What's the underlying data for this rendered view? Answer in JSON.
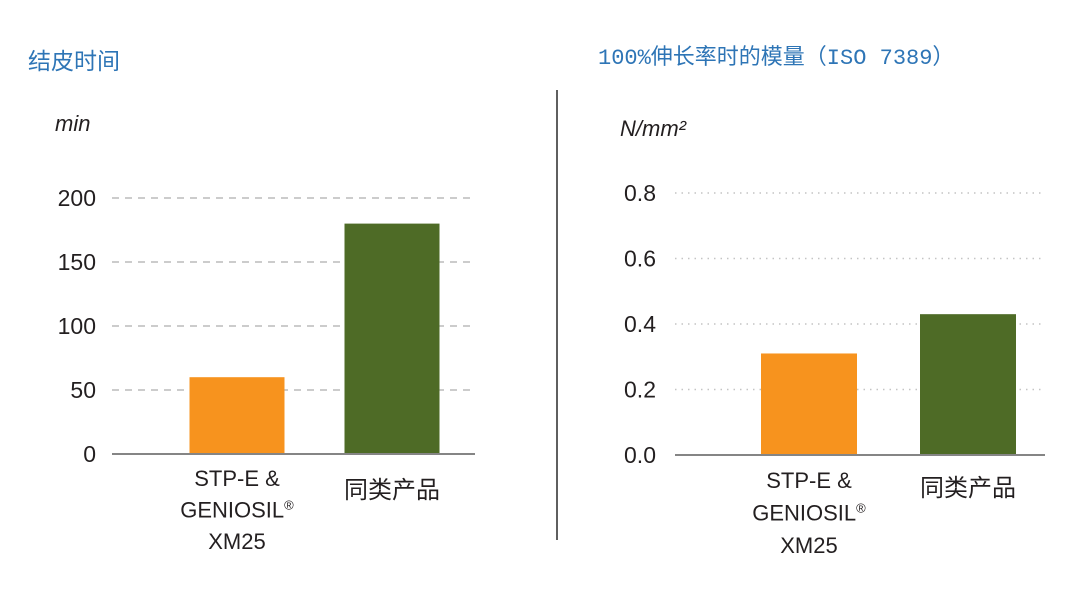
{
  "title_color": "#2E75B6",
  "chart_data": [
    {
      "type": "bar",
      "title": "结皮时间",
      "ylabel": "min",
      "categories": [
        [
          "STP-E &",
          "GENIOSIL®",
          "XM25"
        ],
        [
          "同类产品"
        ]
      ],
      "values": [
        60,
        180
      ],
      "colors": [
        "#F7931E",
        "#4E6B26"
      ],
      "yticks": [
        "0",
        "50",
        "100",
        "150",
        "200"
      ],
      "ylim": [
        0,
        200
      ],
      "grid": true
    },
    {
      "type": "bar",
      "title": "100%伸长率时的模量（ISO 7389）",
      "ylabel": "N/mm²",
      "categories": [
        [
          "STP-E &",
          "GENIOSIL®",
          "XM25"
        ],
        [
          "同类产品"
        ]
      ],
      "values": [
        0.31,
        0.43
      ],
      "colors": [
        "#F7931E",
        "#4E6B26"
      ],
      "yticks": [
        "0.0",
        "0.2",
        "0.4",
        "0.6",
        "0.8"
      ],
      "ylim": [
        0,
        0.8
      ],
      "grid": true
    }
  ]
}
